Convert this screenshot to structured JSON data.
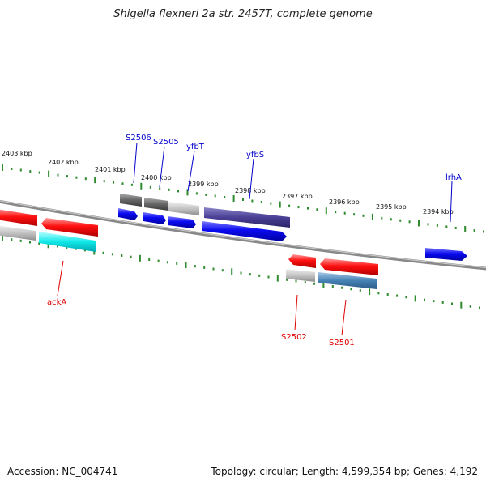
{
  "title": "Shigella flexneri 2a str. 2457T, complete genome",
  "footer": {
    "accession": "Accession: NC_004741",
    "info": "Topology: circular; Length: 4,599,354 bp; Genes: 4,192"
  },
  "colors": {
    "label_top": "#0000cc",
    "label_bottom": "#dd0000",
    "tick": "#2e8b2e",
    "backbone": "#888888"
  },
  "scale_labels": [
    "2403 kbp",
    "2402 kbp",
    "2401 kbp",
    "2400 kbp",
    "2399 kbp",
    "2398 kbp",
    "2397 kbp",
    "2396 kbp",
    "2395 kbp",
    "2394 kbp"
  ],
  "top_labels": [
    "S2506",
    "S2505",
    "yfbT",
    "yfbS",
    "lrhA"
  ],
  "bottom_labels": [
    "ackA",
    "S2502",
    "S2501"
  ]
}
